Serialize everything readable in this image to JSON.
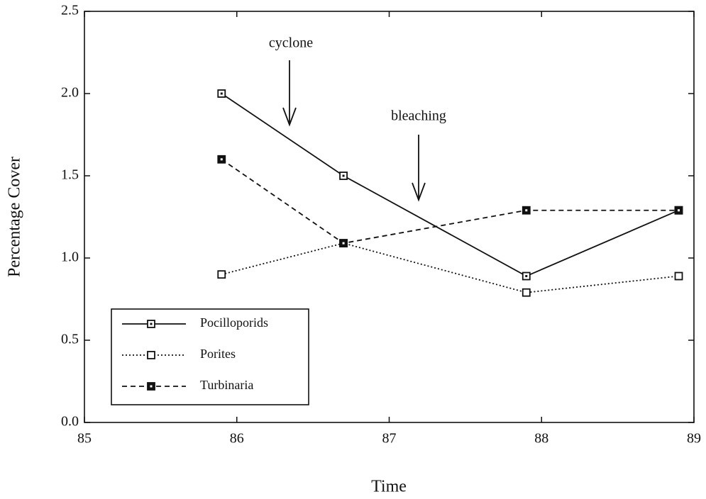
{
  "chart_data": {
    "type": "line",
    "x_label": "Time",
    "y_label": "Percentage Cover",
    "x": [
      85.9,
      86.7,
      87.9,
      88.9
    ],
    "series": [
      {
        "name": "Pocilloporids",
        "color": "#111111",
        "dash": "solid",
        "marker": "dotted-square",
        "values": [
          2.0,
          1.5,
          0.89,
          1.29
        ]
      },
      {
        "name": "Porites",
        "color": "#111111",
        "dash": "dotted",
        "marker": "open-square",
        "values": [
          0.9,
          1.09,
          0.79,
          0.89
        ]
      },
      {
        "name": "Turbinaria",
        "color": "#111111",
        "dash": "dashed",
        "marker": "filled-square",
        "values": [
          1.6,
          1.09,
          1.29,
          1.29
        ]
      }
    ],
    "annotations": [
      "cyclone",
      "bleaching"
    ],
    "xlim": [
      85,
      89
    ],
    "xticks": [
      85,
      86,
      87,
      88,
      89
    ],
    "ylim": [
      0,
      2.5
    ],
    "yticks": [
      {
        "value": 0,
        "label": "0.0"
      },
      0.5,
      {
        "value": 1,
        "label": "1.0"
      },
      1.5,
      {
        "value": 2,
        "label": "2.0"
      },
      2.5
    ],
    "legend": "lower-left",
    "grid": false
  }
}
